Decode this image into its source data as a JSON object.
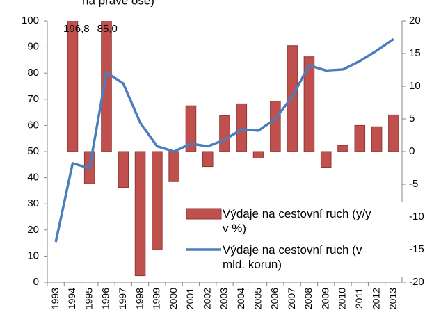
{
  "chart_data": {
    "type": "bar",
    "title": "na pravé ose)",
    "categories": [
      "1993",
      "1994",
      "1995",
      "1996",
      "1997",
      "1998",
      "1999",
      "2000",
      "2001",
      "2002",
      "2003",
      "2004",
      "2005",
      "2006",
      "2007",
      "2008",
      "2009",
      "2010",
      "2011",
      "2012",
      "2013"
    ],
    "series": [
      {
        "name": "Výdaje na cestovní ruch (y/y v %)",
        "type": "bar",
        "axis": "y2",
        "color": "#c0504d",
        "values": [
          null,
          196.8,
          -4.9,
          85.0,
          -5.5,
          -19,
          -15,
          -4.6,
          7.0,
          -2.3,
          5.5,
          7.3,
          -1,
          7.7,
          16.2,
          14.5,
          -2.4,
          0.9,
          4.0,
          3.8,
          5.6
        ],
        "value_labels": [
          null,
          "196,8",
          null,
          "85,0",
          null,
          null,
          null,
          null,
          null,
          null,
          null,
          null,
          null,
          null,
          null,
          null,
          null,
          null,
          null,
          null,
          null
        ]
      },
      {
        "name": "Výdaje na cestovní ruch (v mld. korun)",
        "type": "line",
        "axis": "y",
        "color": "#4a7ebb",
        "values": [
          15.4,
          45.5,
          43.6,
          80.3,
          76,
          61,
          52,
          50,
          53,
          52,
          54.5,
          58.5,
          58,
          62.5,
          71,
          83,
          81,
          81.4,
          84.6,
          88.6,
          93
        ]
      }
    ],
    "ylim": [
      0,
      100
    ],
    "yticks": [
      0,
      10,
      20,
      30,
      40,
      50,
      60,
      70,
      80,
      90,
      100
    ],
    "y2lim": [
      -20,
      20
    ],
    "y2ticks": [
      20,
      15,
      10,
      5,
      0,
      -5,
      -10,
      -15,
      -20
    ]
  }
}
